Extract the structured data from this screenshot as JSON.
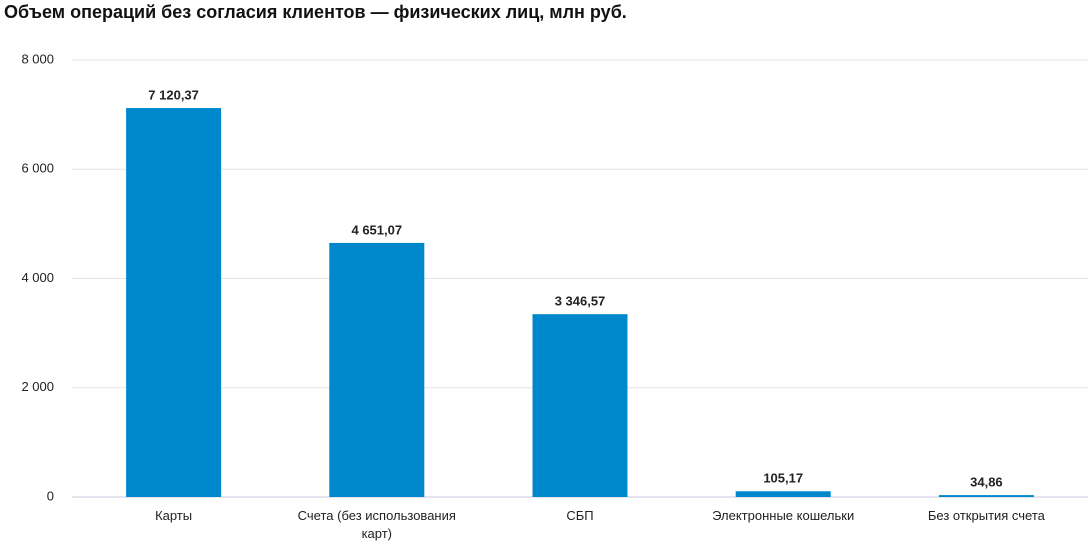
{
  "chart_data": {
    "type": "bar",
    "title": "Объем операций без согласия клиентов — физических лиц, млн руб.",
    "categories": [
      "Карты",
      "Счета (без использования карт)",
      "СБП",
      "Электронные кошельки",
      "Без открытия счета"
    ],
    "values": [
      7120.37,
      4651.07,
      3346.57,
      105.17,
      34.86
    ],
    "value_labels": [
      "7 120,37",
      "4 651,07",
      "3 346,57",
      "105,17",
      "34,86"
    ],
    "color": "#0088cc",
    "ylim": [
      0,
      8000
    ],
    "yticks": [
      0,
      {
        "value": 2000,
        "label": "2 000"
      },
      {
        "value": 4000,
        "label": "4 000"
      },
      {
        "value": 6000,
        "label": "6 000"
      },
      {
        "value": 8000,
        "label": "8 000"
      }
    ],
    "grid": true
  }
}
